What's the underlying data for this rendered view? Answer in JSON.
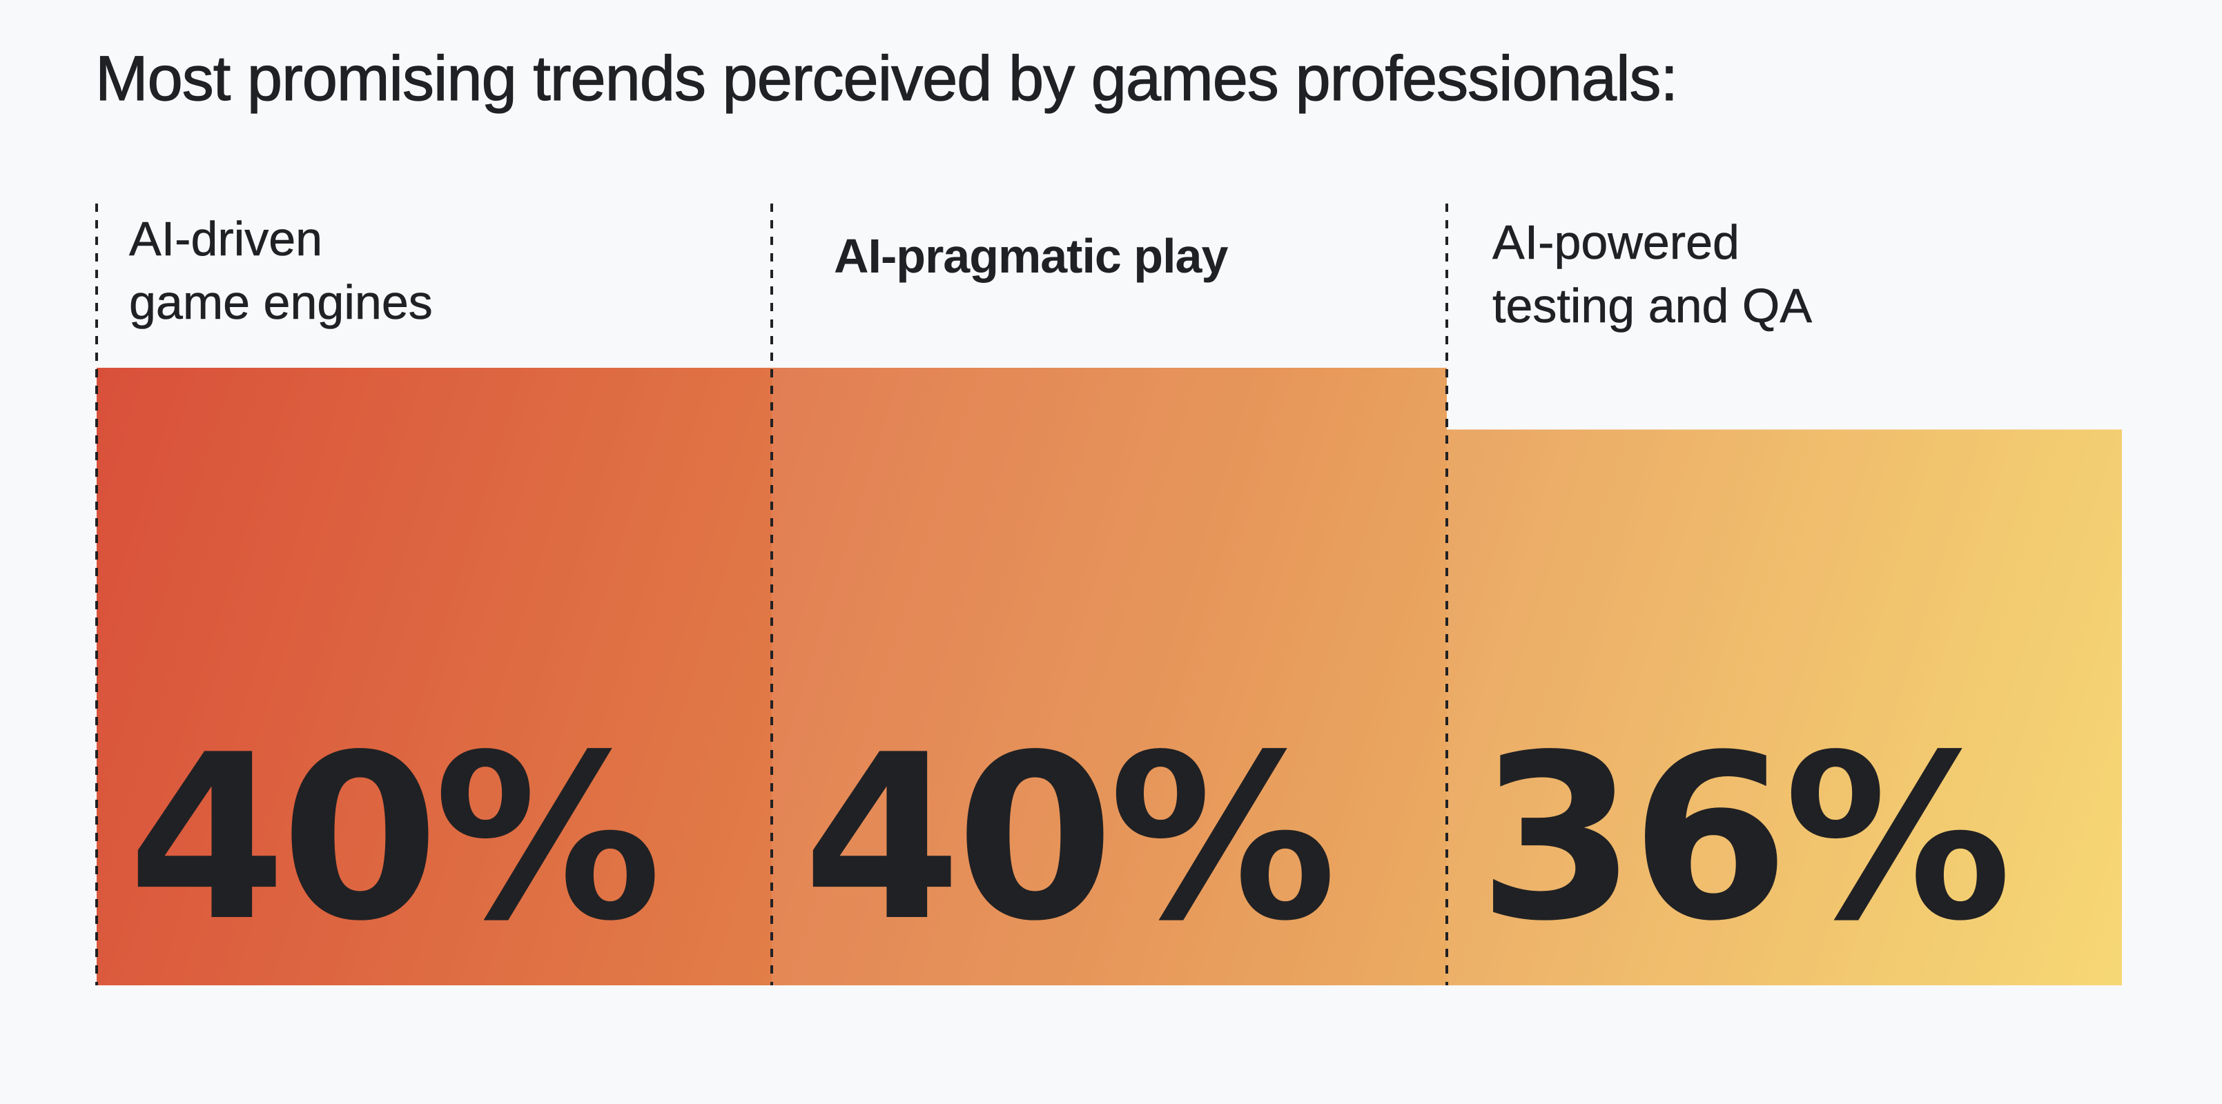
{
  "chart_data": {
    "type": "bar",
    "title": "Most promising trends perceived by games professionals:",
    "categories": [
      "AI-driven\ngame engines",
      "AI-pragmatic play",
      "AI-powered\ntesting and QA"
    ],
    "values": [
      40,
      40,
      36
    ],
    "value_labels": [
      "40%",
      "40%",
      "36%"
    ],
    "unit": "%",
    "ylim": [
      0,
      40
    ],
    "xlabel": "",
    "ylabel": "",
    "grid": false,
    "legend": "none",
    "colors": {
      "gradient_start": "#d9503a",
      "gradient_mid": "#e5904e",
      "gradient_end": "#f5d262",
      "divider": "#202124",
      "text": "#202124",
      "background": "#f8f9fb"
    }
  }
}
